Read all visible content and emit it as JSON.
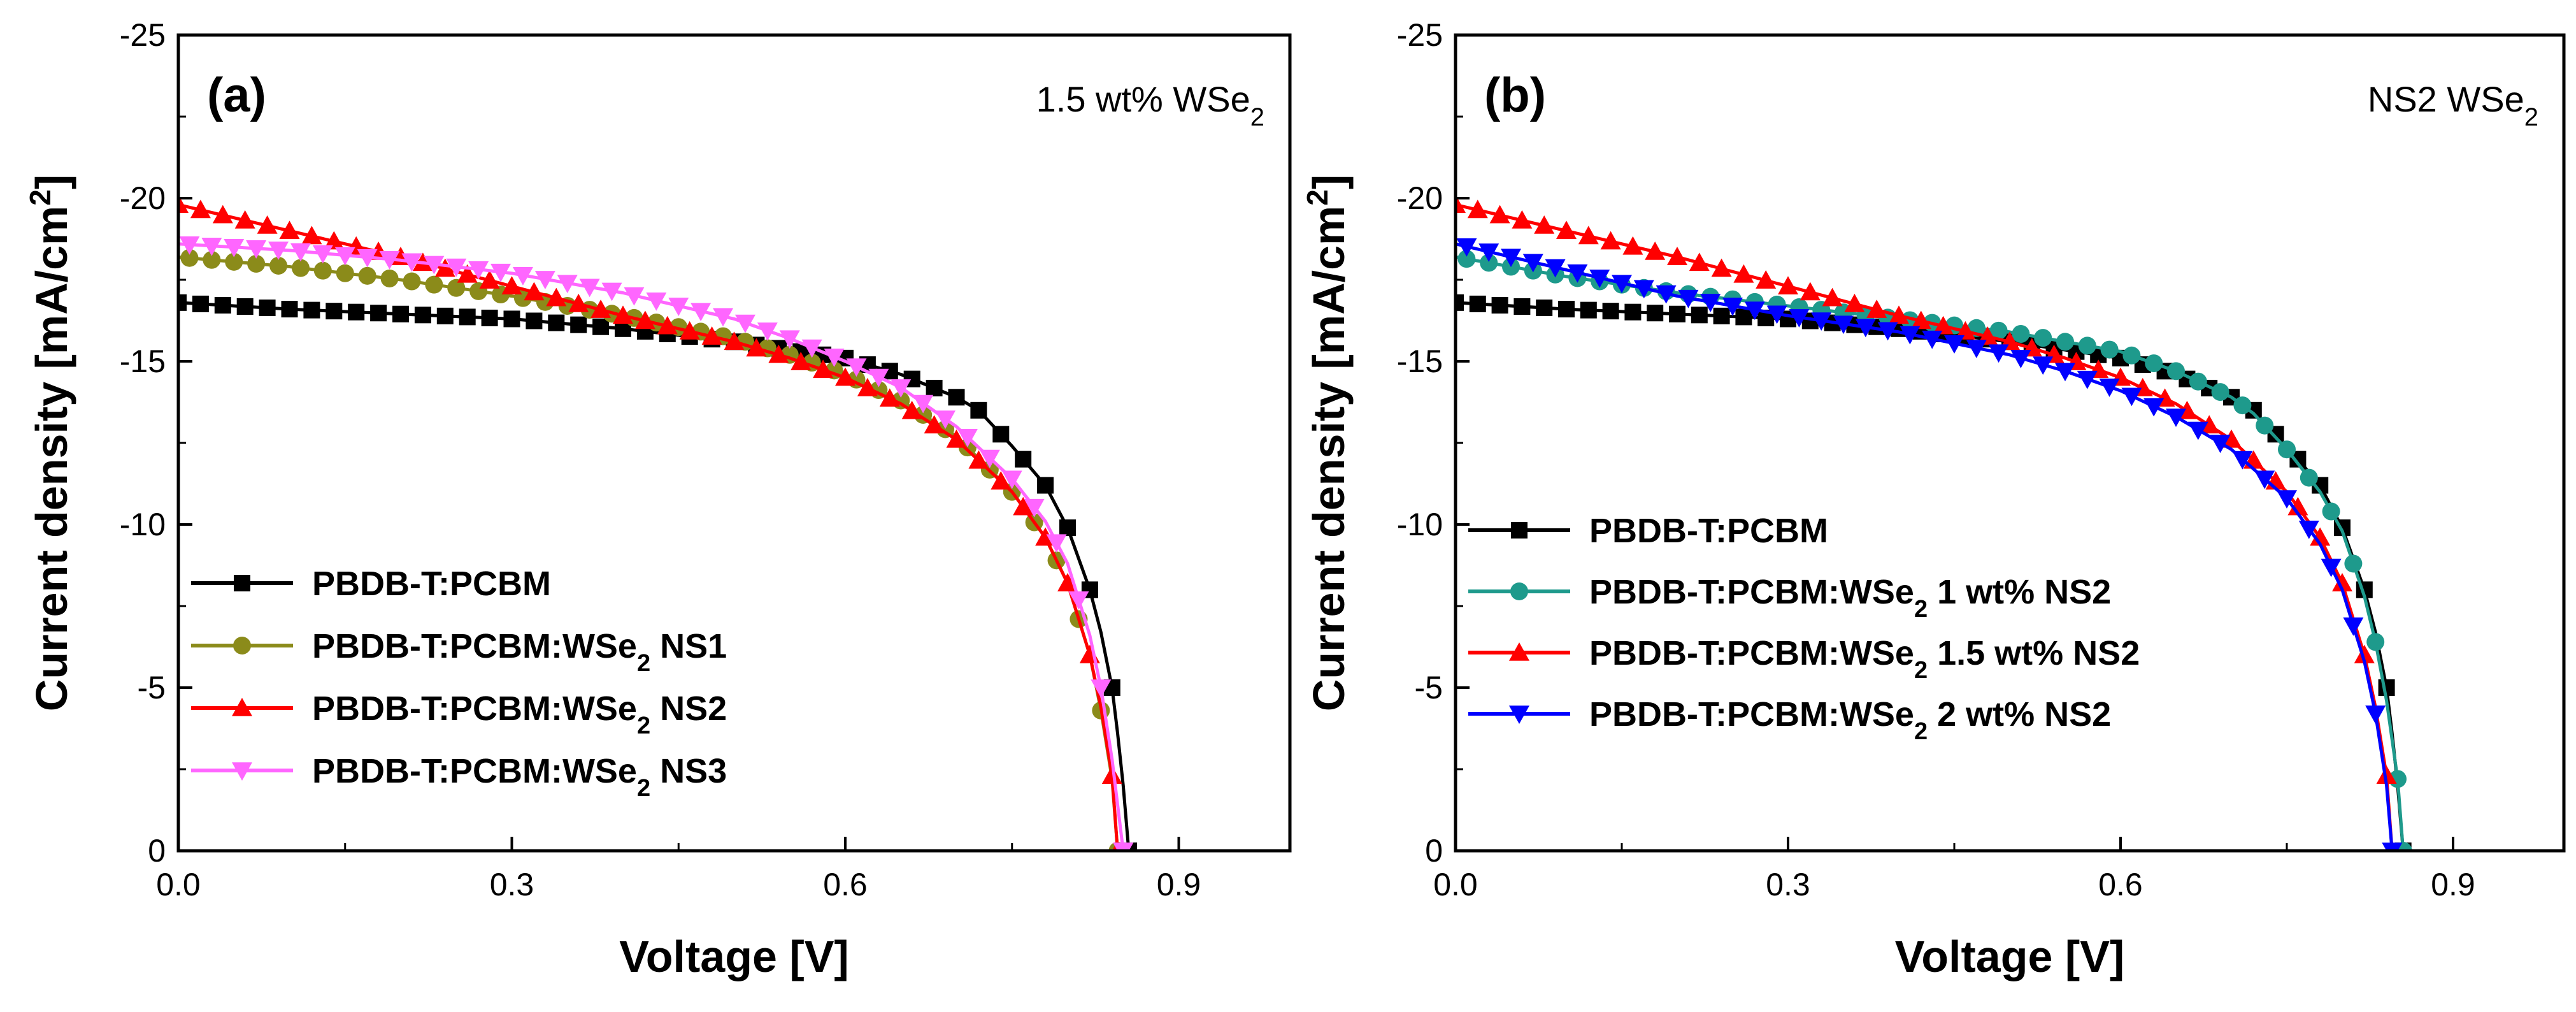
{
  "chart_data": [
    {
      "type": "line",
      "panel_label": "(a)",
      "annotation": {
        "main": "1.5 wt% WSe",
        "sub": "2"
      },
      "xlabel": "Voltage [V]",
      "ylabel": {
        "main": "Current density [mA/cm",
        "sup": "2",
        "end": "]"
      },
      "xlim": [
        0,
        1.0
      ],
      "ylim": [
        0,
        -25
      ],
      "xticks": [
        0,
        0.3,
        0.6,
        0.9
      ],
      "xtick_labels": [
        "0.0",
        "0.3",
        "0.6",
        "0.9"
      ],
      "yticks": [
        -25,
        -20,
        -15,
        -10,
        -5,
        0
      ],
      "ytick_labels": [
        "-25",
        "-20",
        "-15",
        "-10",
        "-5",
        "0"
      ],
      "legend_position": "lower-left",
      "series": [
        {
          "name": "PBDB-T:PCBM",
          "label_main": "PBDB-T:PCBM",
          "label_sub": "",
          "label_end": "",
          "color": "#000000",
          "marker": "square",
          "jsc": -16.8,
          "voc": 0.855,
          "points": [
            [
              0,
              -16.8
            ],
            [
              0.1,
              -16.6
            ],
            [
              0.2,
              -16.45
            ],
            [
              0.3,
              -16.3
            ],
            [
              0.4,
              -16.0
            ],
            [
              0.5,
              -15.6
            ],
            [
              0.6,
              -15.1
            ],
            [
              0.65,
              -14.6
            ],
            [
              0.7,
              -13.9
            ],
            [
              0.72,
              -13.5
            ],
            [
              0.75,
              -12.4
            ],
            [
              0.78,
              -11.2
            ],
            [
              0.8,
              -9.9
            ],
            [
              0.82,
              -8.0
            ],
            [
              0.83,
              -6.7
            ],
            [
              0.84,
              -5.0
            ],
            [
              0.845,
              -3.6
            ],
            [
              0.85,
              -2.0
            ],
            [
              0.855,
              0
            ]
          ]
        },
        {
          "name": "PBDB-T:PCBM:WSe2 NS1",
          "label_main": "PBDB-T:PCBM:WSe",
          "label_sub": "2",
          "label_end": " NS1",
          "color": "#8B8B1A",
          "marker": "circle",
          "jsc": -18.2,
          "voc": 0.845,
          "points": [
            [
              0,
              -18.2
            ],
            [
              0.1,
              -17.9
            ],
            [
              0.2,
              -17.5
            ],
            [
              0.3,
              -17.0
            ],
            [
              0.4,
              -16.4
            ],
            [
              0.5,
              -15.7
            ],
            [
              0.55,
              -15.2
            ],
            [
              0.6,
              -14.6
            ],
            [
              0.65,
              -13.8
            ],
            [
              0.7,
              -12.7
            ],
            [
              0.75,
              -11.0
            ],
            [
              0.78,
              -9.6
            ],
            [
              0.8,
              -8.2
            ],
            [
              0.82,
              -6.0
            ],
            [
              0.83,
              -4.3
            ],
            [
              0.84,
              -2.2
            ],
            [
              0.845,
              0
            ]
          ]
        },
        {
          "name": "PBDB-T:PCBM:WSe2 NS2",
          "label_main": "PBDB-T:PCBM:WSe",
          "label_sub": "2",
          "label_end": " NS2",
          "color": "#FF0000",
          "marker": "triangle-up",
          "jsc": -19.8,
          "voc": 0.845,
          "points": [
            [
              0,
              -19.8
            ],
            [
              0.1,
              -19.0
            ],
            [
              0.2,
              -18.2
            ],
            [
              0.3,
              -17.3
            ],
            [
              0.4,
              -16.4
            ],
            [
              0.5,
              -15.6
            ],
            [
              0.55,
              -15.1
            ],
            [
              0.6,
              -14.5
            ],
            [
              0.65,
              -13.7
            ],
            [
              0.7,
              -12.6
            ],
            [
              0.75,
              -11.0
            ],
            [
              0.78,
              -9.6
            ],
            [
              0.8,
              -8.2
            ],
            [
              0.82,
              -6.0
            ],
            [
              0.83,
              -4.4
            ],
            [
              0.84,
              -2.3
            ],
            [
              0.845,
              0
            ]
          ]
        },
        {
          "name": "PBDB-T:PCBM:WSe2 NS3",
          "label_main": "PBDB-T:PCBM:WSe",
          "label_sub": "2",
          "label_end": " NS3",
          "color": "#FF66FF",
          "marker": "triangle-down",
          "jsc": -18.6,
          "voc": 0.85,
          "points": [
            [
              0,
              -18.6
            ],
            [
              0.1,
              -18.4
            ],
            [
              0.2,
              -18.1
            ],
            [
              0.3,
              -17.7
            ],
            [
              0.4,
              -17.1
            ],
            [
              0.5,
              -16.3
            ],
            [
              0.55,
              -15.7
            ],
            [
              0.6,
              -15.0
            ],
            [
              0.65,
              -14.2
            ],
            [
              0.7,
              -13.0
            ],
            [
              0.75,
              -11.4
            ],
            [
              0.78,
              -10.1
            ],
            [
              0.8,
              -8.8
            ],
            [
              0.82,
              -6.6
            ],
            [
              0.83,
              -5.0
            ],
            [
              0.84,
              -2.8
            ],
            [
              0.85,
              0
            ]
          ]
        }
      ]
    },
    {
      "type": "line",
      "panel_label": "(b)",
      "annotation": {
        "main": "NS2 WSe",
        "sub": "2"
      },
      "xlabel": "Voltage [V]",
      "ylabel": {
        "main": "Current density [mA/cm",
        "sup": "2",
        "end": "]"
      },
      "xlim": [
        0,
        1.0
      ],
      "ylim": [
        0,
        -25
      ],
      "xticks": [
        0,
        0.3,
        0.6,
        0.9
      ],
      "xtick_labels": [
        "0.0",
        "0.3",
        "0.6",
        "0.9"
      ],
      "yticks": [
        -25,
        -20,
        -15,
        -10,
        -5,
        0
      ],
      "ytick_labels": [
        "-25",
        "-20",
        "-15",
        "-10",
        "-5",
        "0"
      ],
      "legend_position": "lower-left",
      "series": [
        {
          "name": "PBDB-T:PCBM",
          "label_main": "PBDB-T:PCBM",
          "label_sub": "",
          "label_end": "",
          "color": "#000000",
          "marker": "square",
          "jsc": -16.8,
          "voc": 0.855,
          "points": [
            [
              0,
              -16.8
            ],
            [
              0.1,
              -16.6
            ],
            [
              0.2,
              -16.45
            ],
            [
              0.3,
              -16.3
            ],
            [
              0.4,
              -16.0
            ],
            [
              0.5,
              -15.6
            ],
            [
              0.6,
              -15.1
            ],
            [
              0.65,
              -14.6
            ],
            [
              0.7,
              -13.9
            ],
            [
              0.72,
              -13.5
            ],
            [
              0.75,
              -12.4
            ],
            [
              0.78,
              -11.2
            ],
            [
              0.8,
              -9.9
            ],
            [
              0.82,
              -8.0
            ],
            [
              0.83,
              -6.7
            ],
            [
              0.84,
              -5.0
            ],
            [
              0.845,
              -3.6
            ],
            [
              0.85,
              -2.0
            ],
            [
              0.855,
              0
            ]
          ]
        },
        {
          "name": "PBDB-T:PCBM:WSe2 1 wt% NS2",
          "label_main": "PBDB-T:PCBM:WSe",
          "label_sub": "2",
          "label_end": " 1 wt% NS2",
          "color": "#1E9A8C",
          "marker": "circle",
          "jsc": -18.2,
          "voc": 0.855,
          "points": [
            [
              0,
              -18.2
            ],
            [
              0.1,
              -17.6
            ],
            [
              0.2,
              -17.1
            ],
            [
              0.3,
              -16.7
            ],
            [
              0.4,
              -16.3
            ],
            [
              0.5,
              -15.9
            ],
            [
              0.6,
              -15.3
            ],
            [
              0.65,
              -14.7
            ],
            [
              0.7,
              -13.9
            ],
            [
              0.72,
              -13.4
            ],
            [
              0.75,
              -12.3
            ],
            [
              0.78,
              -11.0
            ],
            [
              0.8,
              -9.8
            ],
            [
              0.82,
              -7.8
            ],
            [
              0.83,
              -6.4
            ],
            [
              0.84,
              -4.6
            ],
            [
              0.85,
              -2.2
            ],
            [
              0.855,
              0
            ]
          ]
        },
        {
          "name": "PBDB-T:PCBM:WSe2 1.5 wt% NS2",
          "label_main": "PBDB-T:PCBM:WSe",
          "label_sub": "2",
          "label_end": " 1.5 wt% NS2",
          "color": "#FF0000",
          "marker": "triangle-up",
          "jsc": -19.8,
          "voc": 0.845,
          "points": [
            [
              0,
              -19.8
            ],
            [
              0.1,
              -19.0
            ],
            [
              0.2,
              -18.2
            ],
            [
              0.3,
              -17.3
            ],
            [
              0.4,
              -16.4
            ],
            [
              0.5,
              -15.6
            ],
            [
              0.55,
              -15.1
            ],
            [
              0.6,
              -14.5
            ],
            [
              0.65,
              -13.7
            ],
            [
              0.7,
              -12.6
            ],
            [
              0.75,
              -11.0
            ],
            [
              0.78,
              -9.6
            ],
            [
              0.8,
              -8.2
            ],
            [
              0.82,
              -6.0
            ],
            [
              0.83,
              -4.4
            ],
            [
              0.84,
              -2.3
            ],
            [
              0.845,
              0
            ]
          ]
        },
        {
          "name": "PBDB-T:PCBM:WSe2 2 wt% NS2",
          "label_main": "PBDB-T:PCBM:WSe",
          "label_sub": "2",
          "label_end": " 2 wt% NS2",
          "color": "#0000FF",
          "marker": "triangle-down",
          "jsc": -18.6,
          "voc": 0.845,
          "points": [
            [
              0,
              -18.6
            ],
            [
              0.1,
              -17.8
            ],
            [
              0.2,
              -17.0
            ],
            [
              0.3,
              -16.4
            ],
            [
              0.4,
              -15.9
            ],
            [
              0.5,
              -15.2
            ],
            [
              0.55,
              -14.7
            ],
            [
              0.6,
              -14.1
            ],
            [
              0.65,
              -13.3
            ],
            [
              0.7,
              -12.3
            ],
            [
              0.75,
              -10.8
            ],
            [
              0.78,
              -9.4
            ],
            [
              0.8,
              -8.0
            ],
            [
              0.82,
              -5.8
            ],
            [
              0.83,
              -4.2
            ],
            [
              0.84,
              -2.0
            ],
            [
              0.845,
              0
            ]
          ]
        }
      ]
    }
  ]
}
